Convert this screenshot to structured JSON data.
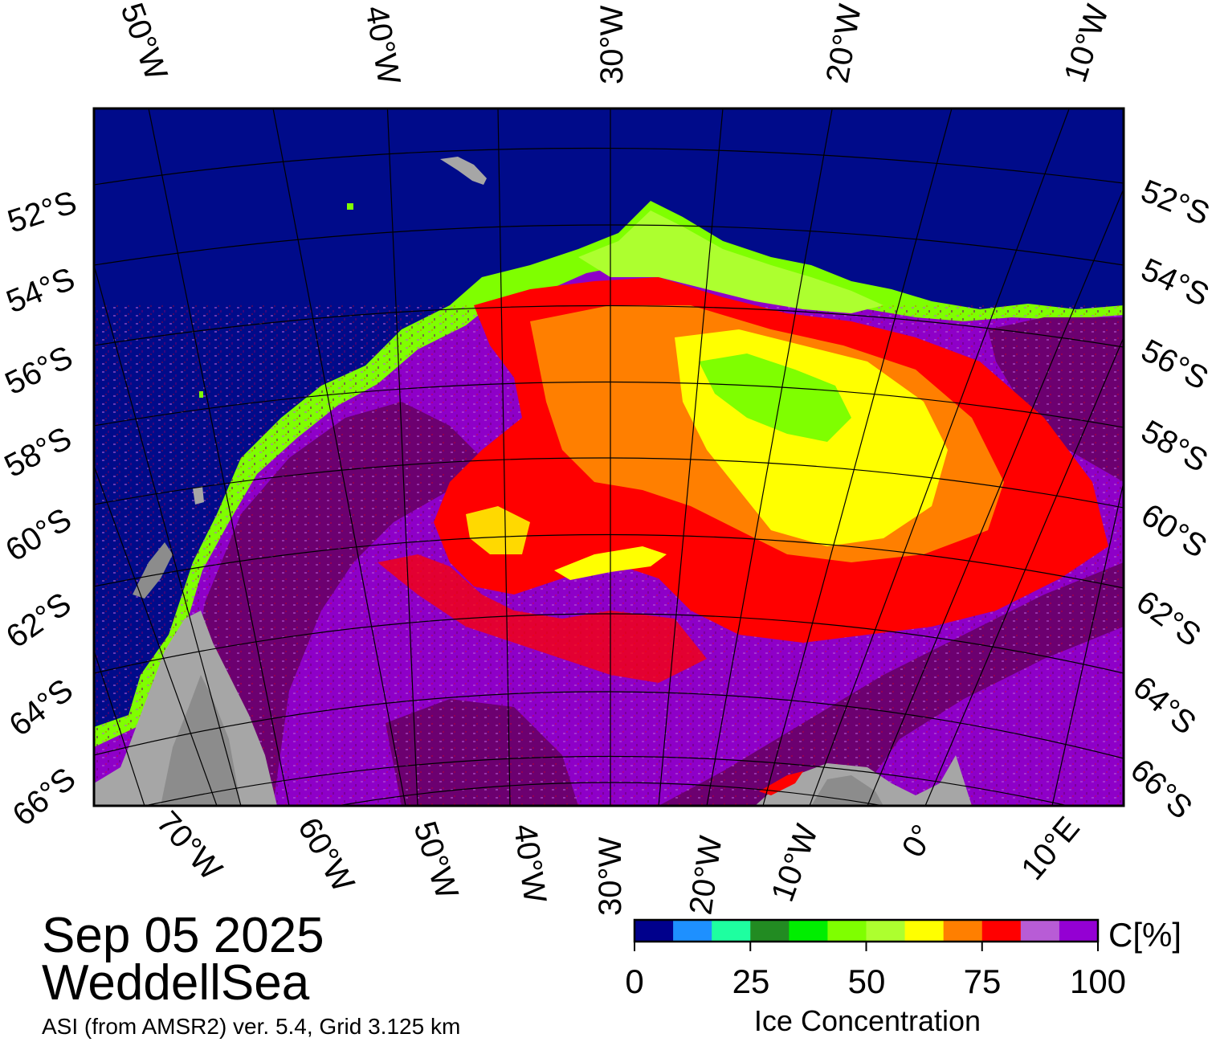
{
  "date": "Sep 05 2025",
  "region": "WeddellSea",
  "product": "ASI (from AMSR2) ver. 5.4,  Grid 3.125 km",
  "map": {
    "top_lon_labels": [
      "50°W",
      "40°W",
      "30°W",
      "20°W",
      "10°W"
    ],
    "bottom_lon_labels": [
      "70°W",
      "60°W",
      "50°W",
      "40°W",
      "30°W",
      "20°W",
      "10°W",
      "0°",
      "10°E"
    ],
    "left_lat_labels": [
      "52°S",
      "54°S",
      "56°S",
      "58°S",
      "60°S",
      "62°S",
      "64°S",
      "66°S"
    ],
    "right_lat_labels": [
      "52°S",
      "54°S",
      "56°S",
      "58°S",
      "60°S",
      "62°S",
      "64°S",
      "66°S"
    ],
    "colors": {
      "ocean": "#000b8a",
      "land": "#a6a6a6",
      "land_dark": "#8c8c8c",
      "ice_100": "#6c0070",
      "ice_95": "#8e00c8",
      "ice_90": "#b85cd6",
      "ice_85": "#ff0000",
      "ice_80": "#ff7f00",
      "ice_75": "#ffff00",
      "ice_low": "#7fff00"
    }
  },
  "colorbar": {
    "unit": "C[%]",
    "label": "Ice Concentration",
    "ticks": [
      "0",
      "25",
      "50",
      "75",
      "100"
    ],
    "colors": [
      "#00008c",
      "#1e90ff",
      "#1effa0",
      "#228b22",
      "#00ee00",
      "#7fff00",
      "#adff2f",
      "#ffff00",
      "#ff7f00",
      "#ff0000",
      "#b85cd6",
      "#9400d3"
    ]
  }
}
